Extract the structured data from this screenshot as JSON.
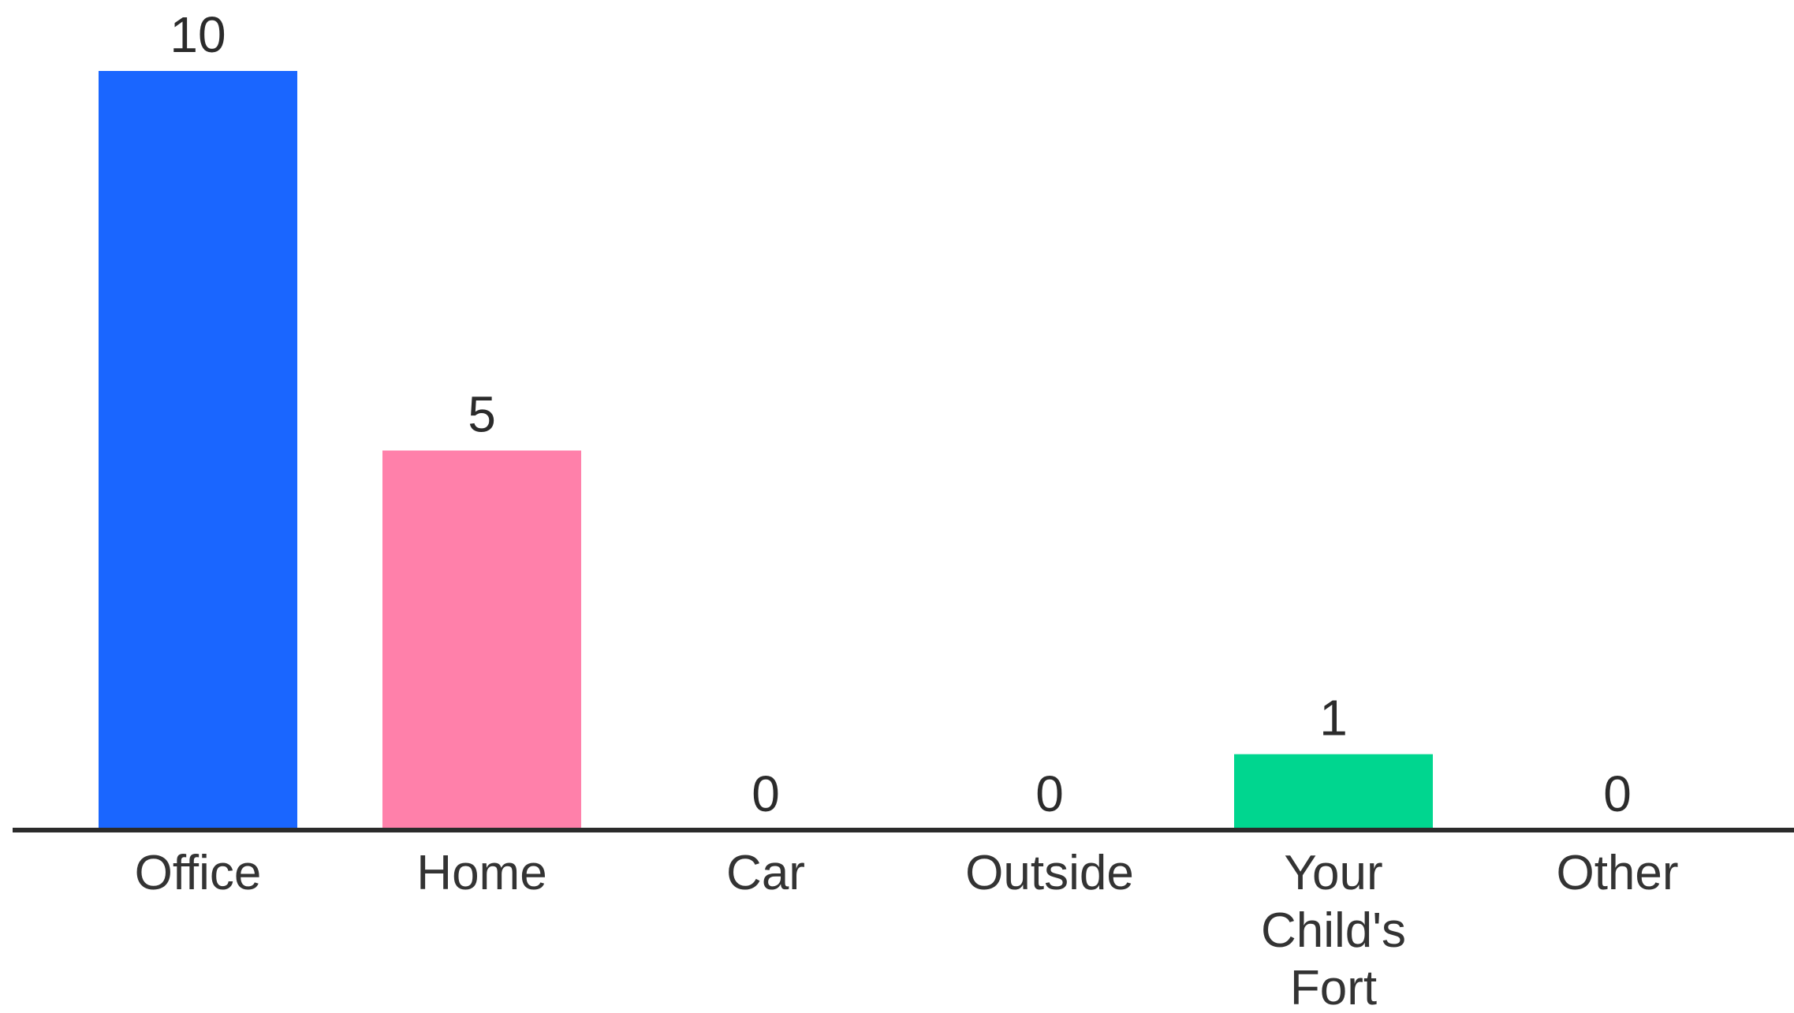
{
  "chart_data": {
    "type": "bar",
    "categories": [
      "Office",
      "Home",
      "Car",
      "Outside",
      "Your Child's Fort",
      "Other"
    ],
    "category_label_lines": [
      [
        "Office"
      ],
      [
        "Home"
      ],
      [
        "Car"
      ],
      [
        "Outside"
      ],
      [
        "Your",
        "Child's",
        "Fort"
      ],
      [
        "Other"
      ]
    ],
    "values": [
      10,
      5,
      0,
      0,
      1,
      0
    ],
    "value_labels": [
      "10",
      "5",
      "0",
      "0",
      "1",
      "0"
    ],
    "colors": [
      "#1a66ff",
      "#ff80aa",
      "#1a66ff",
      "#1a66ff",
      "#00d68f",
      "#1a66ff"
    ],
    "axis_color": "#2b2b2b",
    "ylim": [
      0,
      10
    ],
    "grid": false,
    "legend": "none",
    "title": "",
    "xlabel": "",
    "ylabel": ""
  }
}
